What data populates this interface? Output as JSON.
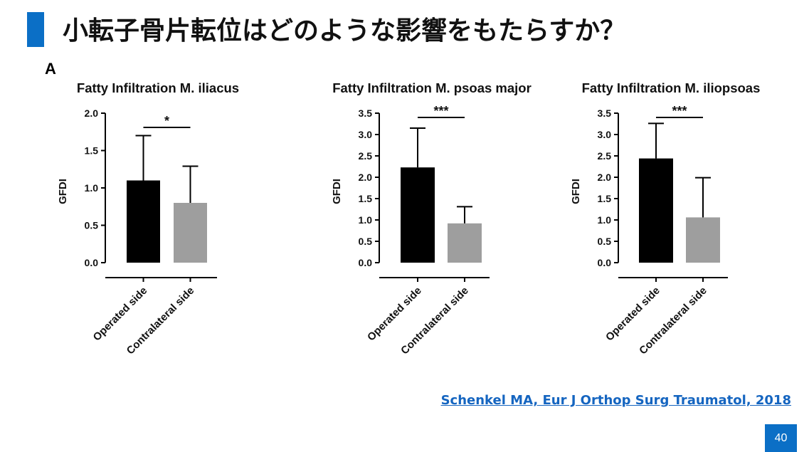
{
  "slide": {
    "title": "小転子骨片転位はどのような影響をもたらすか？",
    "panel_label": "A",
    "citation": "Schenkel MA, Eur J Orthop Surg Traumatol, 2018",
    "page_number": "40",
    "accent_color": "#0b6fc6",
    "citation_color": "#1565c0"
  },
  "chart_data": [
    {
      "type": "bar",
      "title": "Fatty Infiltration M. iliacus",
      "ylabel": "GFDI",
      "categories": [
        "Operated side",
        "Contralateral side"
      ],
      "values": [
        1.1,
        0.8
      ],
      "errors": [
        0.6,
        0.49
      ],
      "bar_colors": [
        "#000000",
        "#9e9e9e"
      ],
      "ylim": [
        0,
        2.0
      ],
      "yticks": [
        "0.0",
        "0.5",
        "1.0",
        "1.5",
        "2.0"
      ],
      "significance": "*",
      "grid": false
    },
    {
      "type": "bar",
      "title": "Fatty Infiltration M. psoas major",
      "ylabel": "GFDI",
      "categories": [
        "Operated side",
        "Contralateral side"
      ],
      "values": [
        2.23,
        0.92
      ],
      "errors": [
        0.92,
        0.39
      ],
      "bar_colors": [
        "#000000",
        "#9e9e9e"
      ],
      "ylim": [
        0,
        3.5
      ],
      "yticks": [
        "0.0",
        "0.5",
        "1.0",
        "1.5",
        "2.0",
        "2.5",
        "3.0",
        "3.5"
      ],
      "significance": "***",
      "grid": false
    },
    {
      "type": "bar",
      "title": "Fatty Infiltration M. iliopsoas",
      "ylabel": "GFDI",
      "categories": [
        "Operated side",
        "Contralateral side"
      ],
      "values": [
        2.44,
        1.06
      ],
      "errors": [
        0.82,
        0.93
      ],
      "bar_colors": [
        "#000000",
        "#9e9e9e"
      ],
      "ylim": [
        0,
        3.5
      ],
      "yticks": [
        "0.0",
        "0.5",
        "1.0",
        "1.5",
        "2.0",
        "2.5",
        "3.0",
        "3.5"
      ],
      "significance": "***",
      "grid": false
    }
  ]
}
